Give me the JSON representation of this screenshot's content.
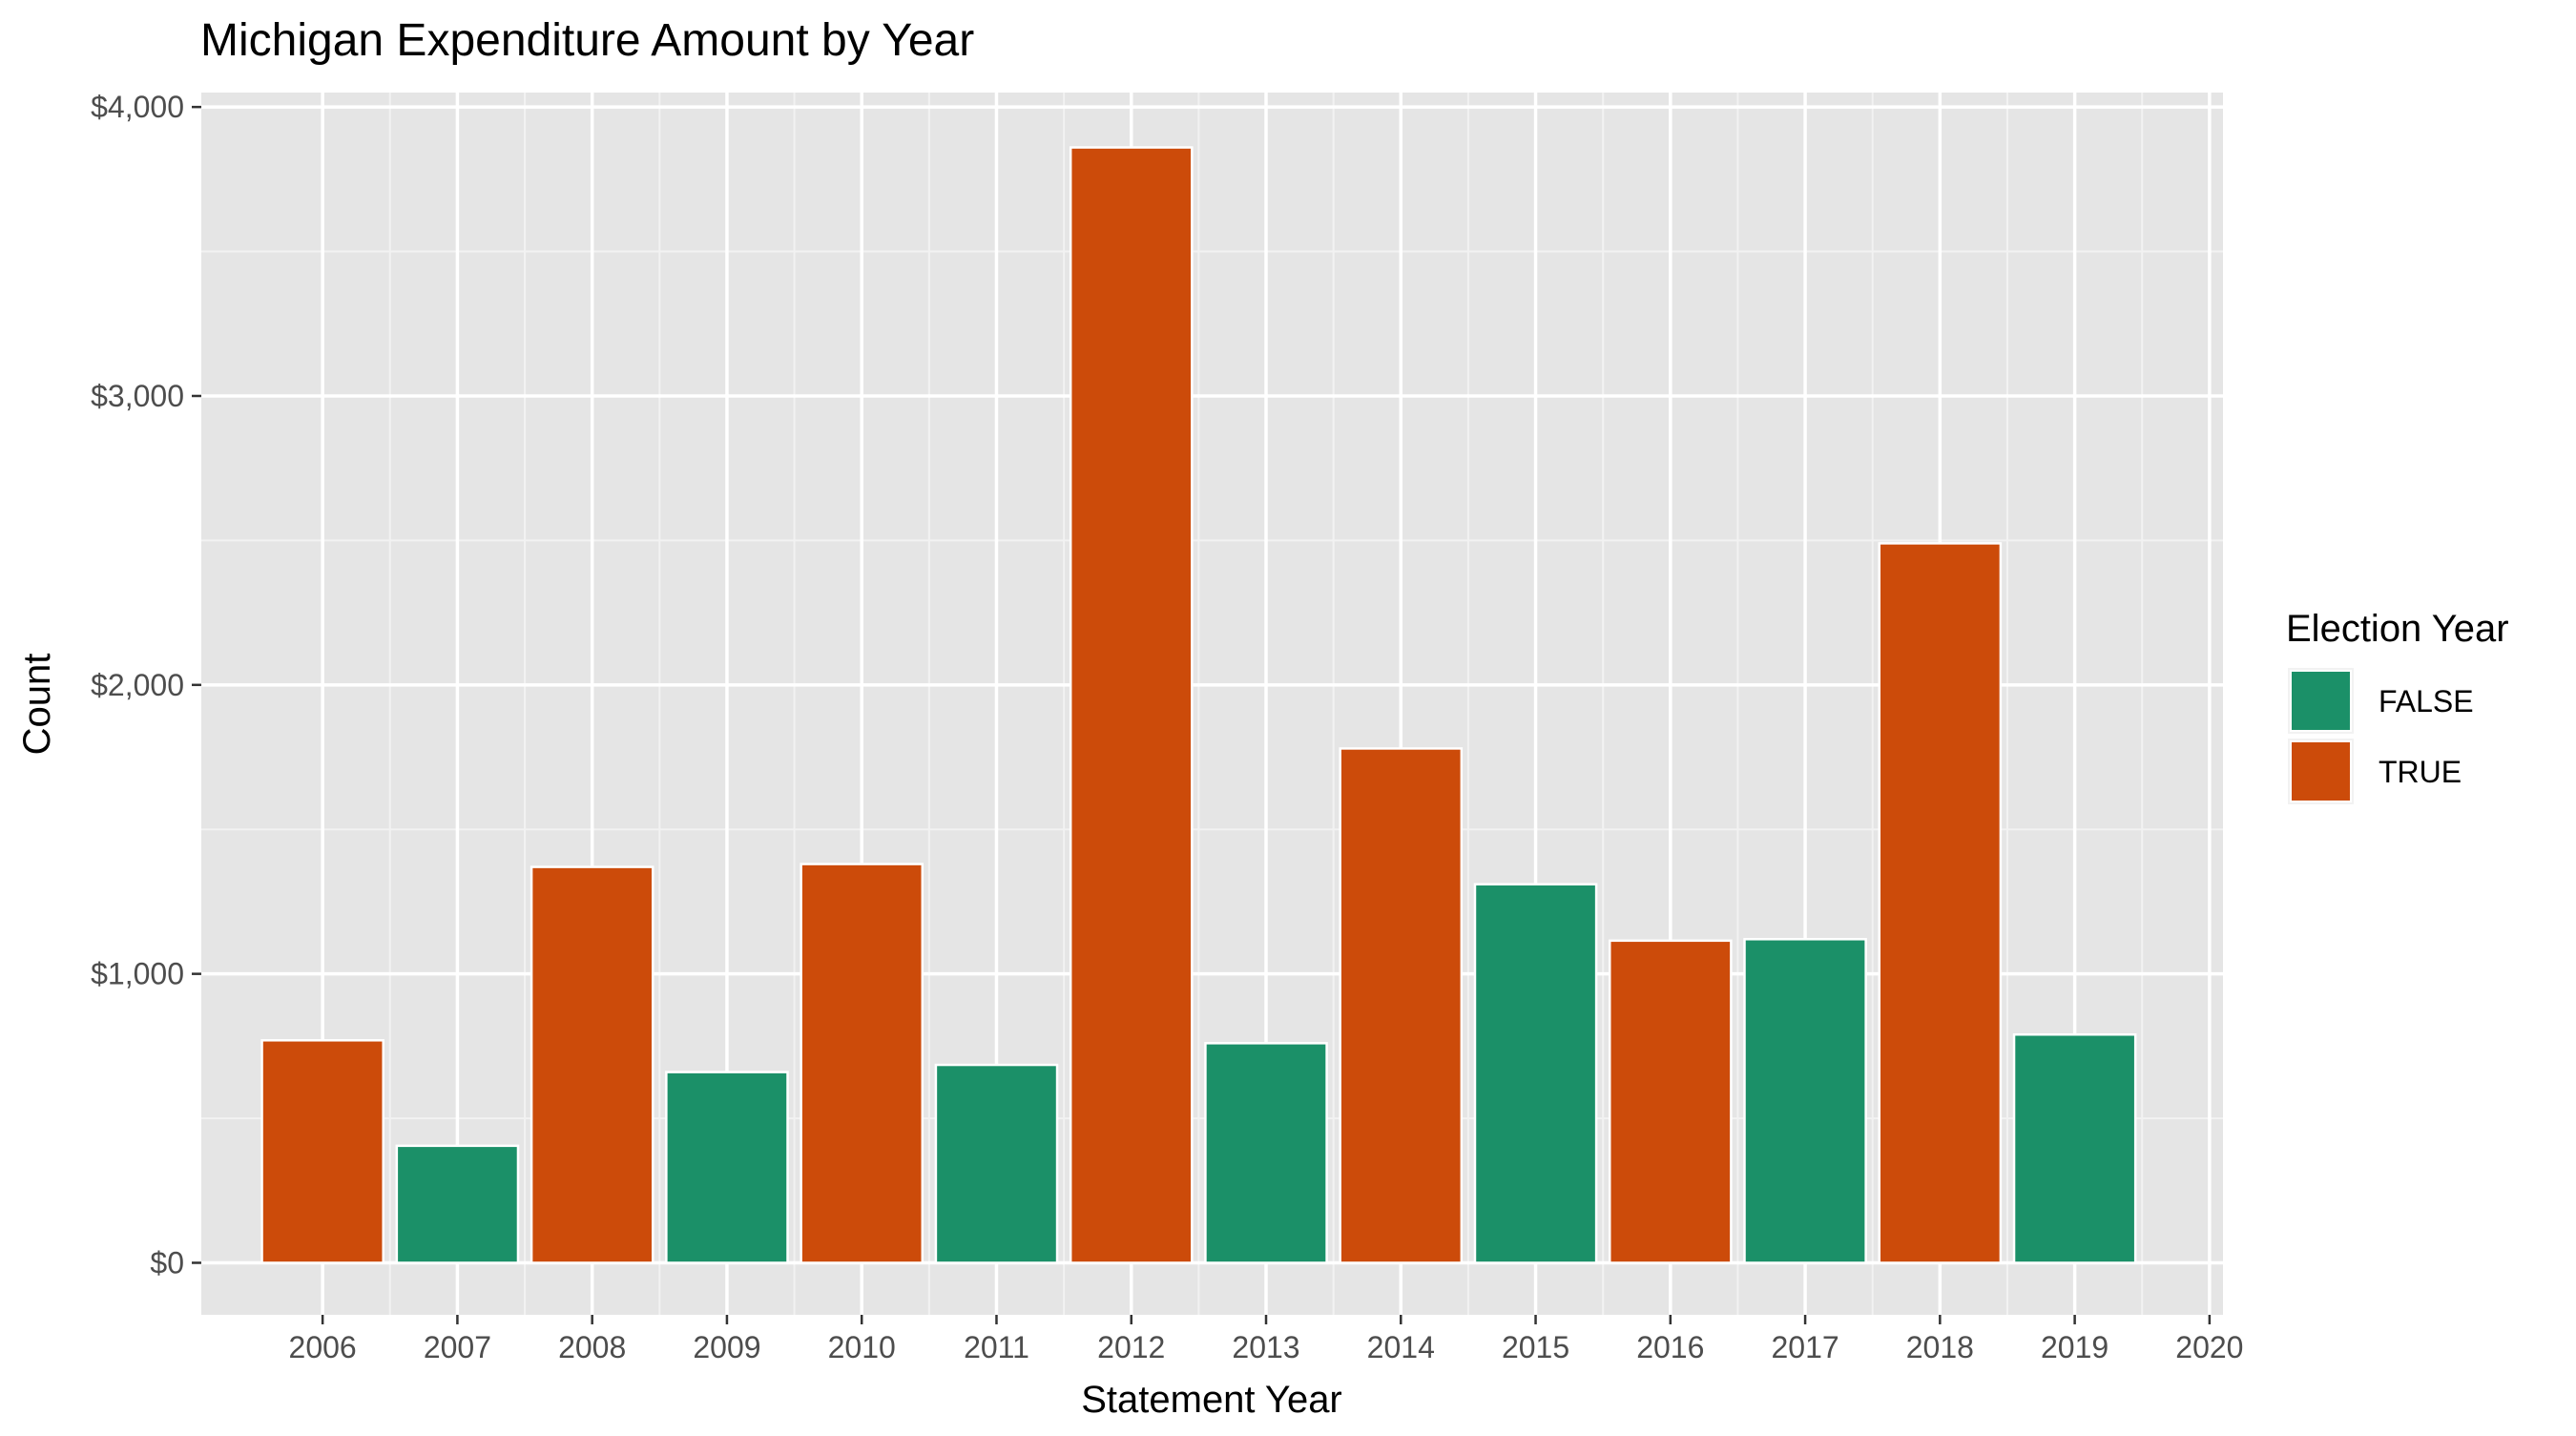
{
  "chart_data": {
    "type": "bar",
    "title": "Michigan Expenditure Amount by Year",
    "xlabel": "Statement Year",
    "ylabel": "Count",
    "x": [
      2006,
      2007,
      2008,
      2009,
      2010,
      2011,
      2012,
      2013,
      2014,
      2015,
      2016,
      2017,
      2018,
      2019
    ],
    "values": [
      770,
      405,
      1370,
      660,
      1380,
      685,
      3860,
      760,
      1780,
      1310,
      1115,
      1120,
      2490,
      790
    ],
    "group": [
      "TRUE",
      "FALSE",
      "TRUE",
      "FALSE",
      "TRUE",
      "FALSE",
      "TRUE",
      "FALSE",
      "TRUE",
      "FALSE",
      "TRUE",
      "FALSE",
      "TRUE",
      "FALSE"
    ],
    "xlim": [
      2005.1,
      2020.1
    ],
    "ylim": [
      -180,
      4050
    ],
    "x_ticks": [
      2006,
      2007,
      2008,
      2009,
      2010,
      2011,
      2012,
      2013,
      2014,
      2015,
      2016,
      2017,
      2018,
      2019,
      2020
    ],
    "y_ticks": [
      0,
      1000,
      2000,
      3000,
      4000
    ],
    "y_tick_labels": [
      "$0",
      "$1,000",
      "$2,000",
      "$3,000",
      "$4,000"
    ],
    "grid": true,
    "legend": {
      "title": "Election Year",
      "placement": "right",
      "entries": [
        {
          "label": "FALSE",
          "color": "#1b9068"
        },
        {
          "label": "TRUE",
          "color": "#cc4b0a"
        }
      ]
    },
    "colors": {
      "FALSE": "#1b9068",
      "TRUE": "#cc4b0a",
      "panel": "#e5e5e5",
      "grid_major": "#ffffff",
      "grid_minor": "#f2f2f2"
    }
  }
}
